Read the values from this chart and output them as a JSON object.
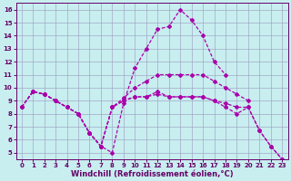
{
  "xlabel": "Windchill (Refroidissement éolien,°C)",
  "background_color": "#c8eef0",
  "line_color": "#aa00aa",
  "xlim_min": -0.5,
  "xlim_max": 23.5,
  "ylim_min": 4.5,
  "ylim_max": 16.5,
  "xticks": [
    0,
    1,
    2,
    3,
    4,
    5,
    6,
    7,
    8,
    9,
    10,
    11,
    12,
    13,
    14,
    15,
    16,
    17,
    18,
    19,
    20,
    21,
    22,
    23
  ],
  "yticks": [
    5,
    6,
    7,
    8,
    9,
    10,
    11,
    12,
    13,
    14,
    15,
    16
  ],
  "grid_color": "#9999bb",
  "tick_fontsize": 5.0,
  "xlabel_fontsize": 6.0,
  "line_width": 0.9,
  "marker_size": 2.0,
  "lines": [
    {
      "x": [
        0,
        1,
        2,
        3,
        4,
        5,
        6,
        7,
        8,
        9,
        10,
        11,
        12,
        13,
        14,
        15,
        16,
        17,
        18
      ],
      "y": [
        8.5,
        9.7,
        9.5,
        9.0,
        8.5,
        8.0,
        6.5,
        5.5,
        5.0,
        8.8,
        11.5,
        13.0,
        14.5,
        14.7,
        16.0,
        15.2,
        14.0,
        12.0,
        11.0
      ]
    },
    {
      "x": [
        0,
        1,
        2,
        3,
        4,
        5,
        6,
        7,
        8,
        9,
        10,
        11,
        12,
        13,
        14,
        15,
        16,
        17,
        18,
        19,
        20
      ],
      "y": [
        8.5,
        9.7,
        9.5,
        9.0,
        8.5,
        8.0,
        6.5,
        5.5,
        8.5,
        9.2,
        10.0,
        10.5,
        11.0,
        11.0,
        11.0,
        11.0,
        11.0,
        10.5,
        10.0,
        9.5,
        9.0
      ]
    },
    {
      "x": [
        0,
        1,
        2,
        3,
        4,
        5,
        6,
        7,
        8,
        9,
        10,
        11,
        12,
        13,
        14,
        15,
        16,
        17,
        18,
        19,
        20,
        21,
        22,
        23
      ],
      "y": [
        8.5,
        9.7,
        9.5,
        9.0,
        8.5,
        8.0,
        6.5,
        5.5,
        8.5,
        9.0,
        9.3,
        9.3,
        9.5,
        9.3,
        9.3,
        9.3,
        9.3,
        9.0,
        8.8,
        8.5,
        8.5,
        6.7,
        5.5,
        4.5
      ]
    },
    {
      "x": [
        0,
        1,
        2,
        3,
        4,
        5,
        6,
        7,
        8,
        9,
        10,
        11,
        12,
        13,
        14,
        15,
        16,
        17,
        18,
        19,
        20,
        21,
        22,
        23
      ],
      "y": [
        8.5,
        9.7,
        9.5,
        9.0,
        8.5,
        8.0,
        6.5,
        5.5,
        8.5,
        9.0,
        9.3,
        9.3,
        9.7,
        9.3,
        9.3,
        9.3,
        9.3,
        9.0,
        8.5,
        8.0,
        8.5,
        6.7,
        5.5,
        4.5
      ]
    }
  ]
}
